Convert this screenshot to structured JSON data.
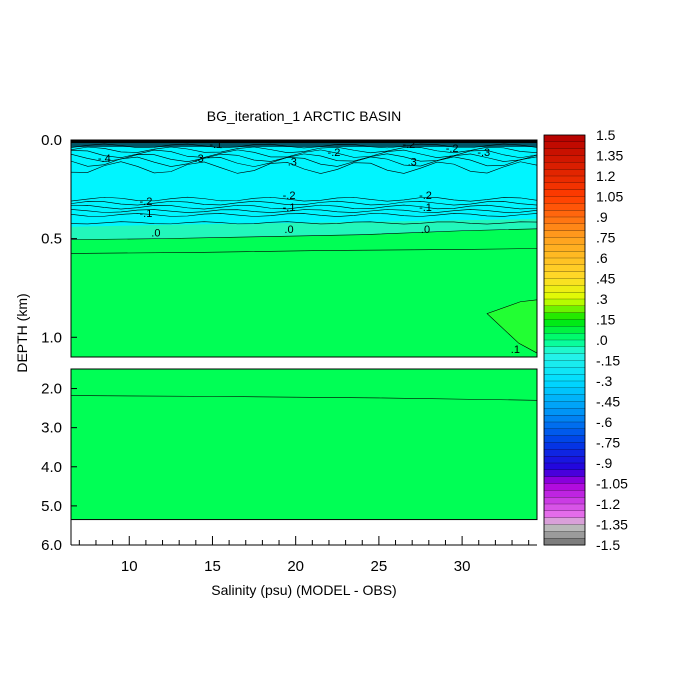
{
  "chart_data": {
    "type": "contour",
    "title": "BG_iteration_1 ARCTIC BASIN",
    "xlabel": "Salinity (psu) (MODEL - OBS)",
    "ylabel": "DEPTH (km)",
    "xlim": [
      6.5,
      34.5
    ],
    "x_ticks": [
      "10",
      "15",
      "20",
      "25",
      "30"
    ],
    "upper_panel": {
      "ylim": [
        0.0,
        1.1
      ],
      "y_ticks": [
        "0.0",
        "0.5",
        "1.0"
      ],
      "contour_labels": [
        {
          "text": "-.4",
          "x": 8.5,
          "y": 0.09
        },
        {
          "text": ".3",
          "x": 14.2,
          "y": 0.09
        },
        {
          "text": "-.1",
          "x": 15.2,
          "y": 0.02
        },
        {
          "text": "-.2",
          "x": 22.3,
          "y": 0.06
        },
        {
          "text": ".3",
          "x": 19.8,
          "y": 0.11
        },
        {
          "text": "-.2",
          "x": 26.8,
          "y": 0.02
        },
        {
          "text": ".3",
          "x": 27.0,
          "y": 0.11
        },
        {
          "text": "-.2",
          "x": 29.4,
          "y": 0.04
        },
        {
          "text": "-.3",
          "x": 31.3,
          "y": 0.06
        },
        {
          "text": "-.2",
          "x": 11.0,
          "y": 0.31
        },
        {
          "text": "-.1",
          "x": 11.0,
          "y": 0.37
        },
        {
          "text": ".0",
          "x": 11.6,
          "y": 0.47
        },
        {
          "text": "-.2",
          "x": 19.6,
          "y": 0.28
        },
        {
          "text": "-.1",
          "x": 19.6,
          "y": 0.34
        },
        {
          "text": ".0",
          "x": 19.6,
          "y": 0.45
        },
        {
          "text": "-.2",
          "x": 27.8,
          "y": 0.28
        },
        {
          "text": "-.1",
          "x": 27.8,
          "y": 0.34
        },
        {
          "text": ".0",
          "x": 27.8,
          "y": 0.45
        },
        {
          "text": ".1",
          "x": 33.2,
          "y": 1.06
        }
      ]
    },
    "lower_panel": {
      "ylim": [
        1.5,
        6.0
      ],
      "y_ticks": [
        "2.0",
        "3.0",
        "4.0",
        "5.0",
        "6.0"
      ],
      "no_data_below_depth": 5.35
    },
    "colorbar": {
      "labels": [
        "1.5",
        "1.35",
        "1.2",
        "1.05",
        ".9",
        ".75",
        ".6",
        ".45",
        ".3",
        ".15",
        ".0",
        "-.15",
        "-.3",
        "-.45",
        "-.6",
        "-.75",
        "-.9",
        "-1.05",
        "-1.2",
        "-1.35",
        "-1.5"
      ],
      "min": -1.5,
      "max": 1.5,
      "step": 0.05
    },
    "colors": {
      "green_fill": "#00ff55",
      "cyan_fill": "#00f5ff",
      "light_cyan": "#33f0ee",
      "no_data": "#ffffff"
    }
  }
}
